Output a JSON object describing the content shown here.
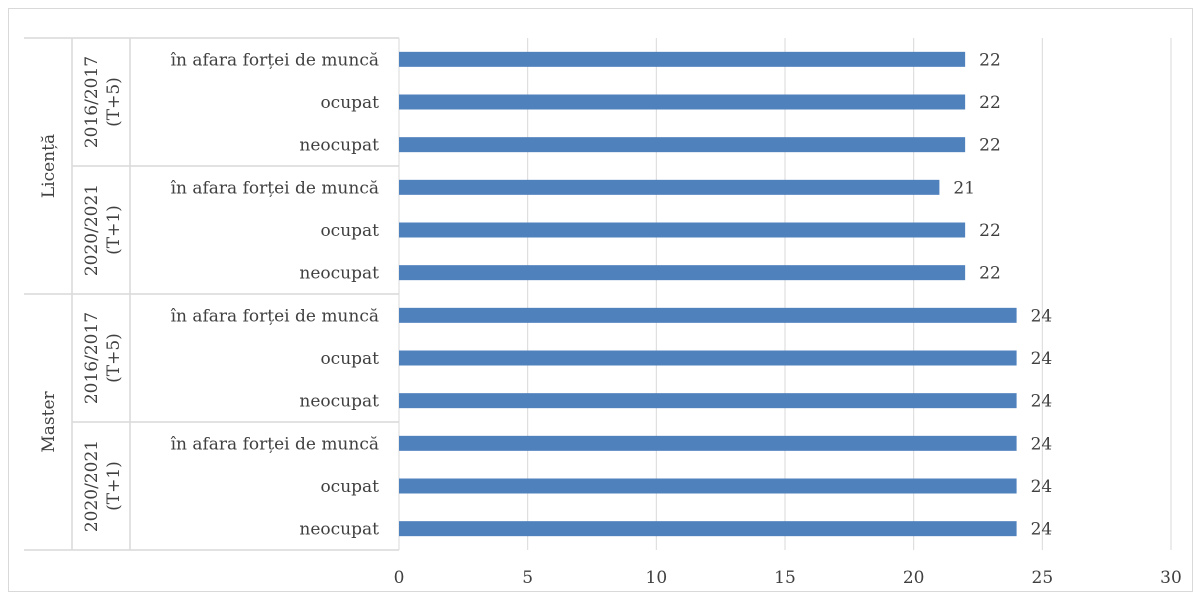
{
  "chart_data": {
    "type": "bar",
    "orientation": "horizontal",
    "groups": [
      {
        "label": "Licență",
        "subgroups": [
          {
            "label_line1": "2016/2017",
            "label_line2": "(T+5)",
            "categories": [
              "în afara forței de muncă",
              "ocupat",
              "neocupat"
            ],
            "values": [
              22,
              22,
              22
            ]
          },
          {
            "label_line1": "2020/2021",
            "label_line2": "(T+1)",
            "categories": [
              "în afara forței de muncă",
              "ocupat",
              "neocupat"
            ],
            "values": [
              21,
              22,
              22
            ]
          }
        ]
      },
      {
        "label": "Master",
        "subgroups": [
          {
            "label_line1": "2016/2017",
            "label_line2": "(T+5)",
            "categories": [
              "în afara forței de muncă",
              "ocupat",
              "neocupat"
            ],
            "values": [
              24,
              24,
              24
            ]
          },
          {
            "label_line1": "2020/2021",
            "label_line2": "(T+1)",
            "categories": [
              "în afara forței de muncă",
              "ocupat",
              "neocupat"
            ],
            "values": [
              24,
              24,
              24
            ]
          }
        ]
      }
    ],
    "xlim": [
      0,
      30
    ],
    "xticks": [
      0,
      5,
      10,
      15,
      20,
      25,
      30
    ],
    "grid": true,
    "bar_color": "#4f81bd",
    "grid_color": "#d9d9d9",
    "data_labels": true,
    "title": "",
    "xlabel": "",
    "ylabel": ""
  }
}
